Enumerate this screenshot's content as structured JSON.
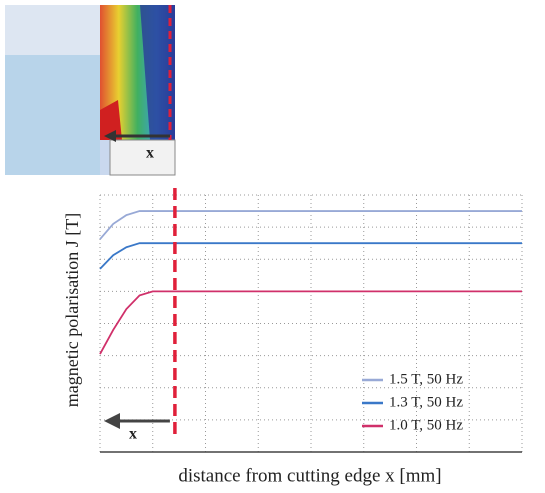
{
  "chart_data": {
    "type": "line",
    "x_label": "distance from cutting edge x [mm]",
    "y_label": "magnetic  polarisation J [T]",
    "x": [
      0,
      0.25,
      0.5,
      0.75,
      1,
      8
    ],
    "series": [
      {
        "name": "1.5 T, 50 Hz",
        "color": "#98a9d6",
        "values": [
          1.325,
          1.42,
          1.475,
          1.5,
          1.5,
          1.5
        ]
      },
      {
        "name": "1.3 T, 50 Hz",
        "color": "#3a78c8",
        "values": [
          1.14,
          1.225,
          1.275,
          1.3,
          1.3,
          1.3
        ]
      },
      {
        "name": "1.0 T, 50 Hz",
        "color": "#d0306a",
        "values": [
          0.61,
          0.76,
          0.89,
          0.975,
          1.0,
          1.0
        ]
      }
    ],
    "xlim": [
      0,
      8
    ],
    "xticks": [
      0,
      1,
      2,
      3,
      4,
      5,
      6,
      7,
      8
    ],
    "ylim": [
      0,
      1.6
    ],
    "yticks": [
      0,
      0.2,
      0.4,
      0.6,
      0.8,
      1.0,
      1.2,
      1.4,
      1.6
    ],
    "grid": true,
    "legend": "lower right",
    "cut_line": {
      "x": 1.42,
      "color": "#e0203a"
    },
    "arrow_label": "x",
    "image_label": "x"
  }
}
